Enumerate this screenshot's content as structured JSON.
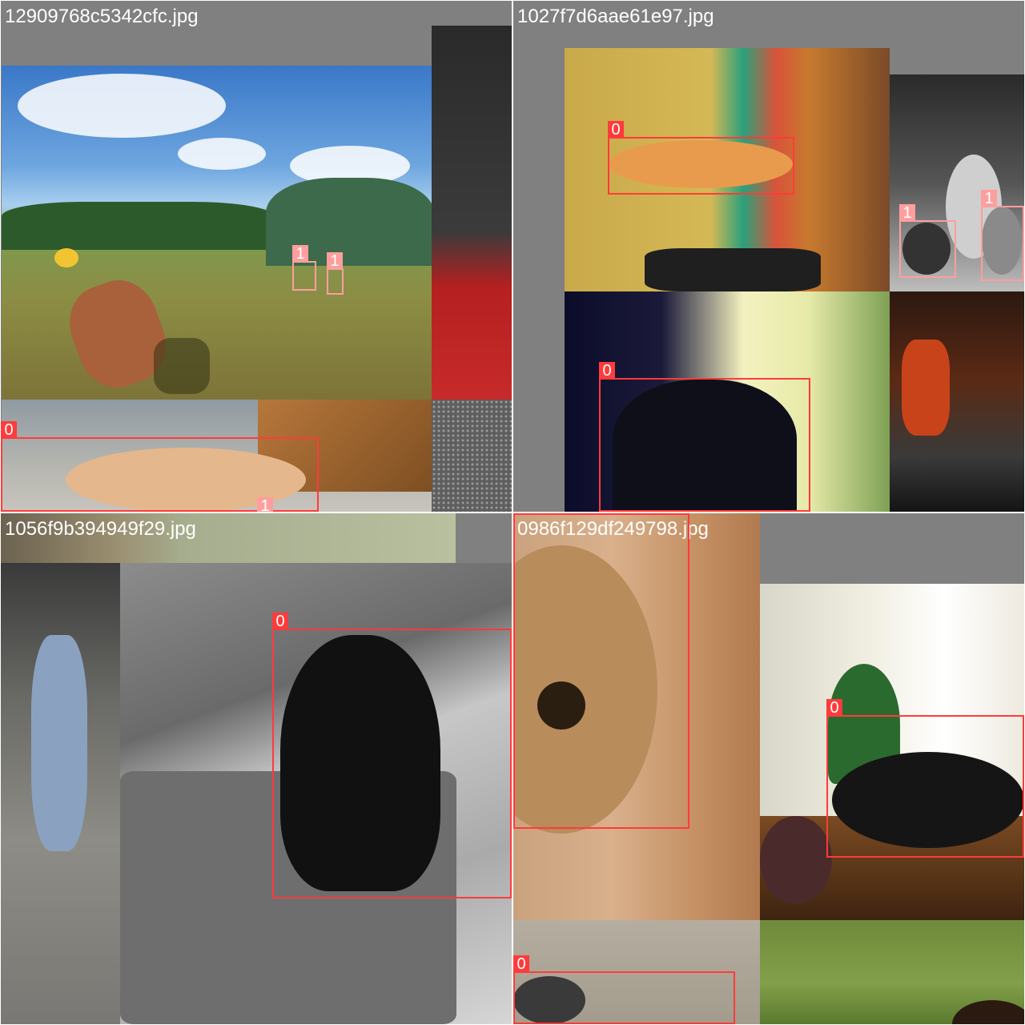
{
  "mosaic": {
    "quadrants": [
      {
        "id": "q1",
        "filename": "12909768c5342cfc.jpg",
        "boxes": [
          {
            "label": "1",
            "color": "#ff9e9e"
          },
          {
            "label": "1",
            "color": "#ff9e9e"
          },
          {
            "label": "0",
            "color": "#ff3b3b"
          },
          {
            "label": "1",
            "color": "#ff9e9e"
          }
        ]
      },
      {
        "id": "q2",
        "filename": "1027f7d6aae61e97.jpg",
        "boxes": [
          {
            "label": "0",
            "color": "#ff3b3b"
          },
          {
            "label": "1",
            "color": "#ff9e9e"
          },
          {
            "label": "1",
            "color": "#ff9e9e"
          },
          {
            "label": "0",
            "color": "#ff3b3b"
          }
        ]
      },
      {
        "id": "q3",
        "filename": "1056f9b394949f29.jpg",
        "boxes": [
          {
            "label": "0",
            "color": "#ff3b3b"
          }
        ]
      },
      {
        "id": "q4",
        "filename": "0986f129df249798.jpg",
        "boxes": [
          {
            "label": "0",
            "color": "#ff3b3b"
          },
          {
            "label": "0",
            "color": "#ff3b3b"
          },
          {
            "label": "0",
            "color": "#ff3b3b"
          }
        ]
      }
    ],
    "class_colors": {
      "0": "#ff3b3b",
      "1": "#ff9e9e"
    }
  }
}
